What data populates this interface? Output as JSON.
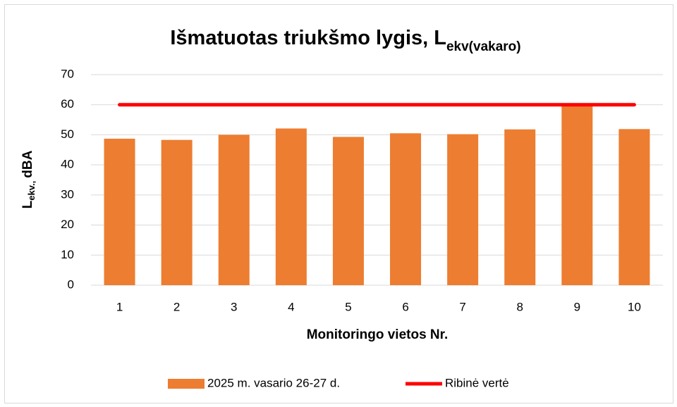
{
  "chart_data": {
    "type": "bar",
    "title": {
      "text": "Išmatuotas triukšmo lygis, L",
      "subscript": "ekv(vakaro)"
    },
    "x_label": "Monitoringo vietos Nr.",
    "y_label": {
      "text": "L",
      "subscript": "ekv.,",
      "suffix": "dBA"
    },
    "categories": [
      "1",
      "2",
      "3",
      "4",
      "5",
      "6",
      "7",
      "8",
      "9",
      "10"
    ],
    "series": [
      {
        "name": "2025 m. vasario 26-27 d.",
        "type": "bar",
        "color": "#ed7d31",
        "values": [
          48.7,
          48.3,
          50.0,
          52.1,
          49.3,
          50.5,
          50.2,
          51.8,
          60.3,
          51.9
        ]
      },
      {
        "name": "Ribinė vertė",
        "type": "line",
        "color": "#ff0000",
        "values": [
          60,
          60,
          60,
          60,
          60,
          60,
          60,
          60,
          60,
          60
        ]
      }
    ],
    "ylim": [
      0,
      70
    ],
    "yticks": [
      0,
      10,
      20,
      30,
      40,
      50,
      60,
      70
    ],
    "grid": true,
    "legend": "bottom"
  }
}
